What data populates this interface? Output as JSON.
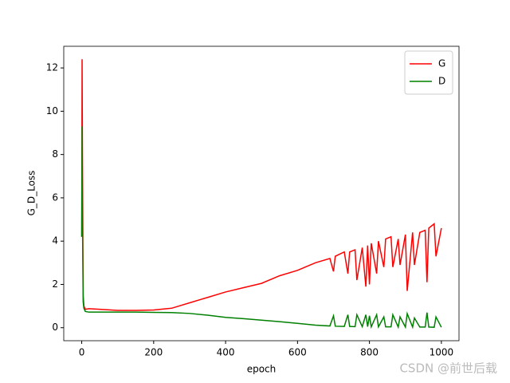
{
  "chart_data": {
    "type": "line",
    "xlabel": "epoch",
    "ylabel": "G_D_Loss",
    "x": [
      0,
      1,
      2,
      4,
      6,
      10,
      20,
      50,
      100,
      150,
      200,
      250,
      300,
      350,
      400,
      450,
      500,
      550,
      600,
      650,
      690,
      700,
      705,
      730,
      740,
      745,
      760,
      765,
      780,
      790,
      795,
      800,
      805,
      820,
      825,
      840,
      845,
      860,
      865,
      880,
      885,
      900,
      905,
      920,
      925,
      940,
      955,
      960,
      965,
      980,
      985,
      1000
    ],
    "series": [
      {
        "name": "G",
        "color": "#ff0000",
        "values": [
          4.2,
          12.4,
          8.0,
          1.5,
          1.0,
          0.85,
          0.88,
          0.85,
          0.8,
          0.8,
          0.82,
          0.9,
          1.15,
          1.4,
          1.65,
          1.85,
          2.05,
          2.4,
          2.65,
          3.0,
          3.2,
          2.6,
          3.3,
          3.5,
          2.5,
          3.5,
          3.6,
          2.2,
          3.7,
          1.9,
          3.8,
          2.0,
          3.9,
          2.5,
          4.0,
          2.8,
          4.1,
          4.2,
          2.8,
          4.1,
          2.9,
          4.3,
          1.7,
          4.4,
          2.9,
          4.4,
          4.5,
          2.1,
          4.6,
          4.8,
          3.3,
          4.6
        ]
      },
      {
        "name": "D",
        "color": "#008000",
        "values": [
          4.2,
          9.3,
          5.0,
          1.2,
          0.9,
          0.75,
          0.72,
          0.72,
          0.72,
          0.72,
          0.71,
          0.7,
          0.66,
          0.58,
          0.48,
          0.42,
          0.35,
          0.28,
          0.2,
          0.12,
          0.08,
          0.55,
          0.07,
          0.06,
          0.6,
          0.06,
          0.05,
          0.6,
          0.05,
          0.6,
          0.05,
          0.55,
          0.04,
          0.6,
          0.04,
          0.5,
          0.04,
          0.04,
          0.6,
          0.03,
          0.5,
          0.03,
          0.65,
          0.03,
          0.45,
          0.03,
          0.03,
          0.7,
          0.03,
          0.02,
          0.5,
          0.02
        ]
      }
    ],
    "xlim": [
      -50,
      1049
    ],
    "ylim": [
      -0.6,
      13.0
    ],
    "xticks": [
      0,
      200,
      400,
      600,
      800,
      1000
    ],
    "yticks": [
      0,
      2,
      4,
      6,
      8,
      10,
      12
    ],
    "legend": "upper right"
  },
  "watermark": "CSDN @前世后载"
}
